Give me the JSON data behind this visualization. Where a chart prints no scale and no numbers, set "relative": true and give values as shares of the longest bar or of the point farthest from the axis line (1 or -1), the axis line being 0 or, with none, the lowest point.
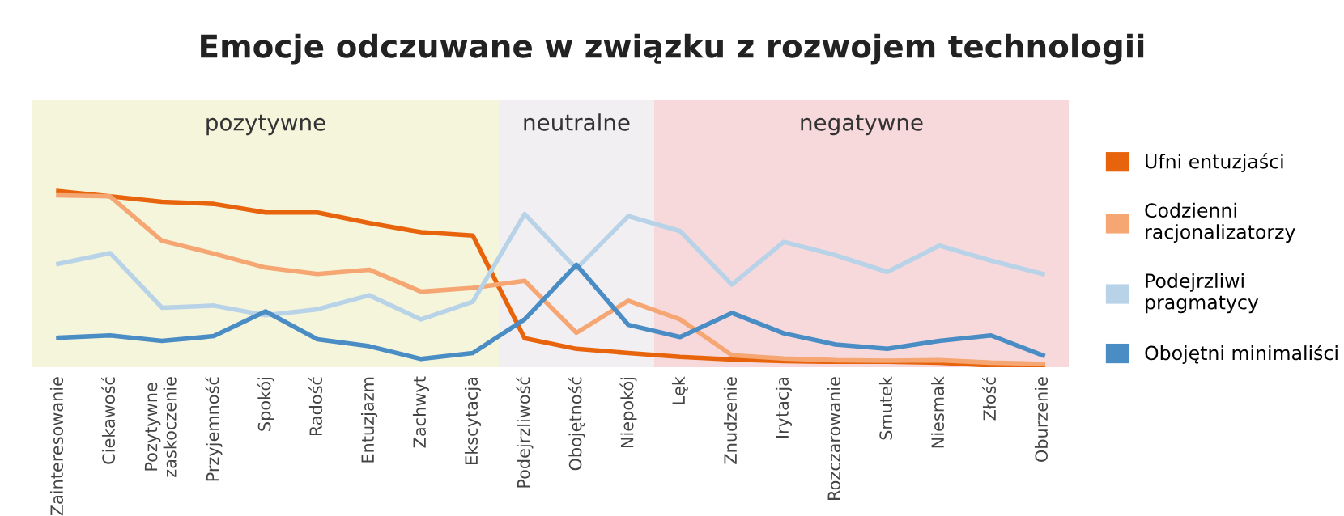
{
  "chart_data": {
    "type": "line",
    "title": "Emocje odczuwane w związku z rozwojem technologii",
    "relative": true,
    "grid": false,
    "legend": "right",
    "marker": "none",
    "line_style": "solid",
    "categories": [
      "Zainteresowanie",
      "Ciekawość",
      "Pozytywne\nzaskoczenie",
      "Przyjemność",
      "Spokój",
      "Radość",
      "Entuzjazm",
      "Zachwyt",
      "Ekscytacja",
      "Podejrzliwość",
      "Obojętność",
      "Niepokój",
      "Lęk",
      "Znudzenie",
      "Irytacja",
      "Rozczarowanie",
      "Smutek",
      "Niesmak",
      "Złość",
      "Oburzenie"
    ],
    "series": [
      {
        "name": "Ufni entuzjaści",
        "color": "#e8640c",
        "values": [
          1.0,
          0.969,
          0.938,
          0.926,
          0.877,
          0.877,
          0.816,
          0.764,
          0.745,
          0.156,
          0.095,
          0.071,
          0.049,
          0.034,
          0.025,
          0.021,
          0.021,
          0.016,
          0.0,
          0.0
        ]
      },
      {
        "name": "Codzienni\nracjonalizatorzy",
        "color": "#f5a672",
        "values": [
          0.975,
          0.969,
          0.715,
          0.641,
          0.561,
          0.524,
          0.549,
          0.423,
          0.444,
          0.485,
          0.187,
          0.371,
          0.264,
          0.058,
          0.04,
          0.03,
          0.027,
          0.03,
          0.016,
          0.009
        ]
      },
      {
        "name": "Podejrzliwi\npragmatycy",
        "color": "#b8d3e8",
        "values": [
          0.582,
          0.644,
          0.331,
          0.343,
          0.288,
          0.322,
          0.402,
          0.264,
          0.365,
          0.868,
          0.555,
          0.856,
          0.77,
          0.463,
          0.708,
          0.632,
          0.536,
          0.687,
          0.601,
          0.524
        ]
      },
      {
        "name": "Obojętni minimaliści",
        "color": "#4a8cc4",
        "values": [
          0.159,
          0.172,
          0.141,
          0.168,
          0.31,
          0.15,
          0.11,
          0.037,
          0.071,
          0.264,
          0.577,
          0.233,
          0.163,
          0.301,
          0.184,
          0.12,
          0.095,
          0.141,
          0.172,
          0.058
        ]
      }
    ],
    "bands": [
      {
        "axis": "x",
        "from": "Zainteresowanie",
        "to": "Ekscytacja",
        "label": "pozytywne",
        "color": "#f5f5dc"
      },
      {
        "axis": "x",
        "from": "Podejrzliwość",
        "to": "Niepokój",
        "label": "neutralne",
        "color": "#f2eff3"
      },
      {
        "axis": "x",
        "from": "Lęk",
        "to": "Oburzenie",
        "label": "negatywne",
        "color": "#f7d9dc"
      }
    ]
  }
}
